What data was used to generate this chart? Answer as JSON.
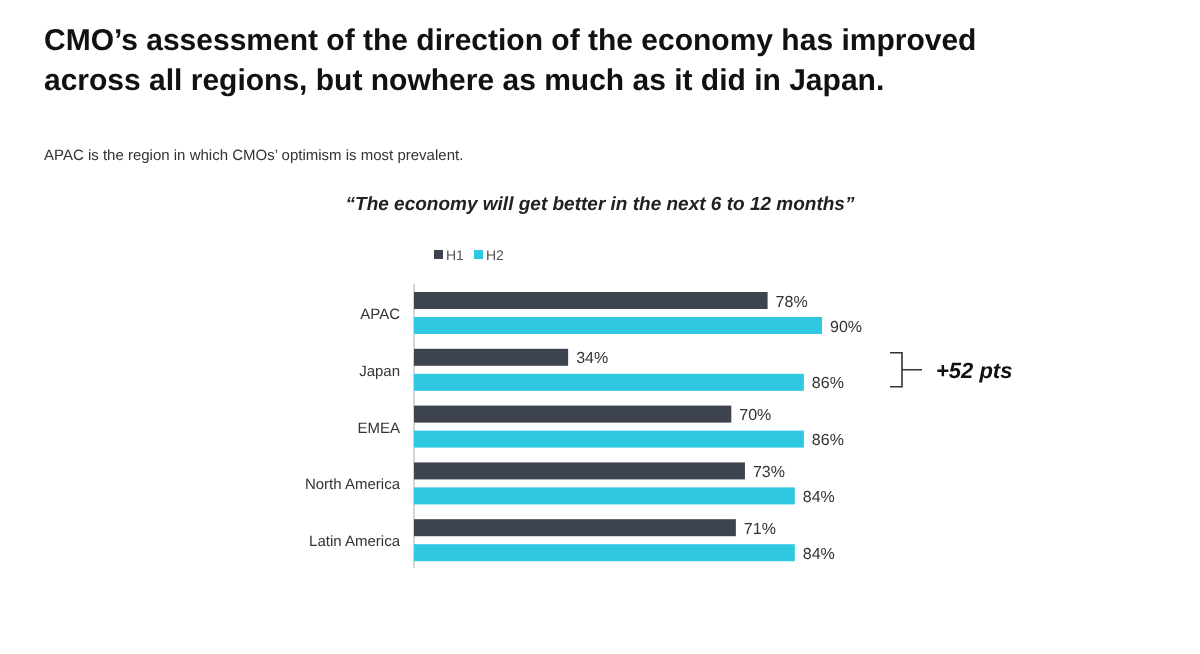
{
  "chart_data": {
    "type": "bar",
    "orientation": "horizontal",
    "title": "CMO’s assessment of the direction of the economy has improved across all regions, but nowhere as much as it did in Japan.",
    "subtitle": "APAC is the region in which CMOs’ optimism is most prevalent.",
    "xlabel": "“The economy will get better in the next 6 to 12 months”",
    "categories": [
      "APAC",
      "Japan",
      "EMEA",
      "North America",
      "Latin America"
    ],
    "series": [
      {
        "name": "H1",
        "color": "#3d4450",
        "values": [
          78,
          34,
          70,
          73,
          71
        ],
        "value_labels": [
          "78%",
          "34%",
          "70%",
          "73%",
          "71%"
        ]
      },
      {
        "name": "H2",
        "color": "#2ec8e0",
        "values": [
          90,
          86,
          86,
          84,
          84
        ],
        "value_labels": [
          "90%",
          "86%",
          "86%",
          "84%",
          "84%"
        ]
      }
    ],
    "tick_labels": "y",
    "legend": "top",
    "annotations": [
      "+52 pts"
    ]
  }
}
